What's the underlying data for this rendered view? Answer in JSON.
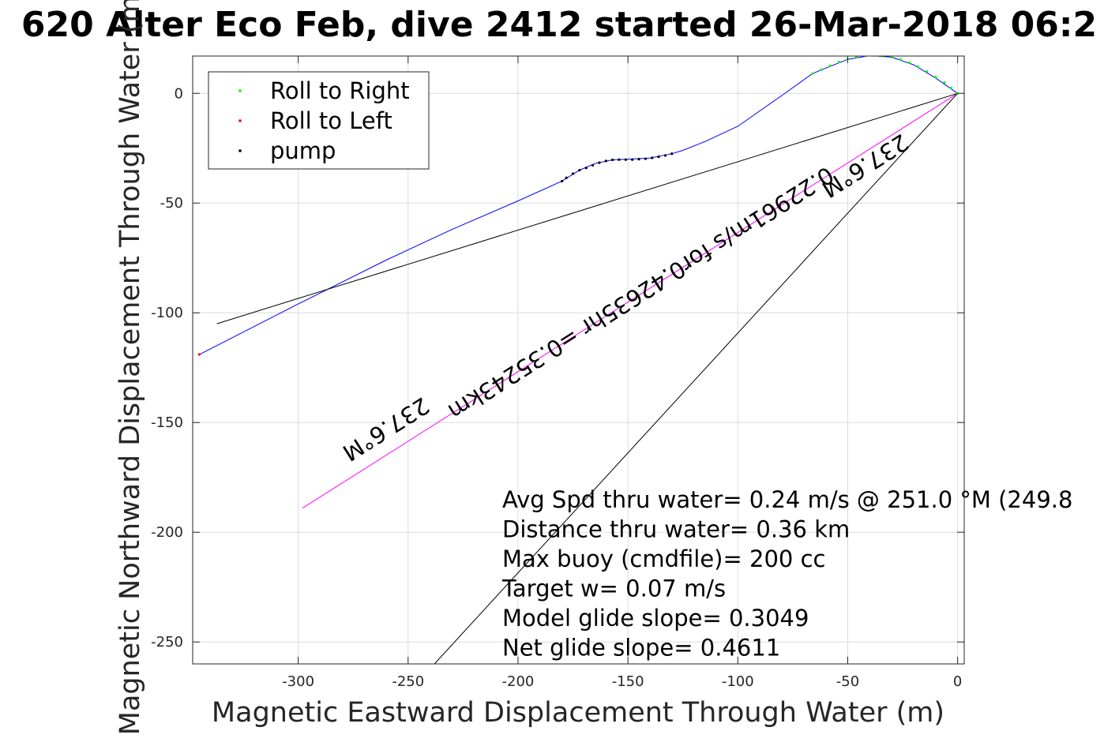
{
  "chart_data": {
    "type": "line",
    "title": "620 Alter Eco Feb, dive 2412 started 26-Mar-2018 06:2",
    "xlabel": "Magnetic Eastward Displacement Through Water (m)",
    "ylabel": "Magnetic Northward Displacement Through Water (m)",
    "xlim": [
      -348,
      3
    ],
    "ylim": [
      -260,
      17
    ],
    "xticks": [
      -300,
      -250,
      -200,
      -150,
      -100,
      -50,
      0
    ],
    "xtick_labels": [
      "-300",
      "-250",
      "-200",
      "-150",
      "-100",
      "-50",
      "0"
    ],
    "yticks": [
      0,
      -50,
      -100,
      -150,
      -200,
      -250
    ],
    "ytick_labels": [
      "0",
      "-50",
      "-100",
      "-150",
      "-200",
      "-250"
    ],
    "grid": true,
    "legend": {
      "placement": "top-left",
      "entries": [
        {
          "name": "Roll to Right",
          "color": "#00ff00"
        },
        {
          "name": "Roll to Left",
          "color": "#ff0000"
        },
        {
          "name": "pump",
          "color": "#000000"
        }
      ]
    },
    "series": [
      {
        "name": "track",
        "color": "#0000ff",
        "x": [
          0,
          -10,
          -20,
          -30,
          -40,
          -50,
          -60,
          -66,
          -80,
          -100,
          -115,
          -125,
          -130,
          -140,
          -150,
          -157,
          -165,
          -172,
          -180,
          -200,
          -230,
          -260,
          -300,
          -345
        ],
        "y": [
          0,
          7,
          13,
          16.5,
          17.2,
          15.5,
          11.5,
          9,
          -1,
          -15,
          -22,
          -26,
          -27.5,
          -29.5,
          -30,
          -30.3,
          -32,
          -35,
          -40,
          -49,
          -62,
          -76,
          -96,
          -119
        ]
      },
      {
        "name": "magenta heading line",
        "color": "#ff00ff",
        "x": [
          0,
          -298
        ],
        "y": [
          0,
          -189
        ]
      },
      {
        "name": "reference line upper",
        "color": "#000000",
        "x": [
          0,
          -337
        ],
        "y": [
          0,
          -105
        ]
      },
      {
        "name": "reference line lower",
        "color": "#000000",
        "x": [
          0,
          -238
        ],
        "y": [
          0,
          -260
        ]
      }
    ],
    "markers": {
      "roll_right": {
        "color": "#00ff00",
        "x": [
          0,
          -3,
          -6,
          -10,
          -14,
          -18,
          -22,
          -26,
          -30,
          -34,
          -38,
          -42,
          -46,
          -50,
          -54,
          -58,
          -62,
          -66
        ],
        "y": [
          0,
          2.5,
          5,
          7.5,
          10,
          12.2,
          14,
          15.4,
          16.4,
          17,
          17.2,
          17.1,
          16.6,
          15.7,
          14.3,
          12.6,
          10.8,
          9
        ]
      },
      "roll_left": {
        "color": "#ff0000",
        "x": [
          -345
        ],
        "y": [
          -119
        ]
      },
      "pump": {
        "color": "#000000",
        "x": [
          -130,
          -133,
          -136,
          -139,
          -142,
          -145,
          -148,
          -151,
          -154,
          -157,
          -160,
          -163,
          -166,
          -169,
          -172,
          -175,
          -178,
          -180
        ],
        "y": [
          -27.5,
          -28.3,
          -28.9,
          -29.4,
          -29.8,
          -30.0,
          -30.2,
          -30.2,
          -30.2,
          -30.3,
          -30.8,
          -31.6,
          -32.8,
          -34.0,
          -35.0,
          -36.6,
          -38.5,
          -40
        ]
      }
    },
    "annotations": [
      {
        "text": "237.6°M",
        "x": -262,
        "y": -150,
        "angle": 147.6
      },
      {
        "text": "0.22961m/s for0.42635hr =0.35243km",
        "x": -146,
        "y": -88,
        "angle": 147.6
      },
      {
        "text": "237.6°M",
        "x": -44,
        "y": -30,
        "angle": 147.6
      }
    ],
    "info_text": [
      "Avg Spd thru water=  0.24 m/s @ 251.0 °M (249.8",
      "Distance thru water=  0.36 km",
      "Max buoy (cmdfile)= 200 cc",
      "Target w= 0.07 m/s",
      "Model glide slope= 0.3049",
      "Net glide slope= 0.4611"
    ]
  }
}
